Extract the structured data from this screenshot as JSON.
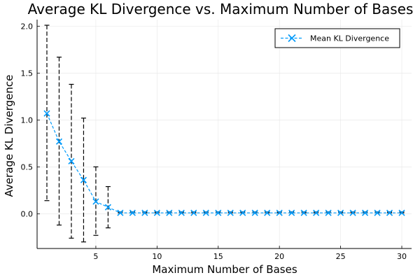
{
  "chart_data": {
    "type": "line",
    "title": "Average KL Divergence vs. Maximum Number of Bases",
    "xlabel": "Maximum Number of Bases",
    "ylabel": "Average KL Divergence",
    "xlim": [
      0.2,
      30.8
    ],
    "ylim": [
      -0.37,
      2.07
    ],
    "xticks": [
      5,
      10,
      15,
      20,
      25,
      30
    ],
    "yticks": [
      0.0,
      0.5,
      1.0,
      1.5,
      2.0
    ],
    "xtick_labels": [
      "5",
      "10",
      "15",
      "20",
      "25",
      "30"
    ],
    "ytick_labels": [
      "0.0",
      "0.5",
      "1.0",
      "1.5",
      "2.0"
    ],
    "grid": true,
    "legend_position": "top-right",
    "colors": {
      "series": "#009AFA",
      "error_bars": "#000000",
      "grid": "#E6E6E6"
    },
    "series": [
      {
        "name": "Mean KL Divergence",
        "marker": "x",
        "x": [
          1,
          2,
          3,
          4,
          5,
          6,
          7,
          8,
          9,
          10,
          11,
          12,
          13,
          14,
          15,
          16,
          17,
          18,
          19,
          20,
          21,
          22,
          23,
          24,
          25,
          26,
          27,
          28,
          29,
          30
        ],
        "values": [
          1.07,
          0.77,
          0.56,
          0.36,
          0.13,
          0.07,
          0.01,
          0.01,
          0.01,
          0.01,
          0.01,
          0.01,
          0.01,
          0.01,
          0.01,
          0.01,
          0.01,
          0.01,
          0.01,
          0.01,
          0.01,
          0.01,
          0.01,
          0.01,
          0.01,
          0.01,
          0.01,
          0.01,
          0.01,
          0.01
        ],
        "error_low": [
          0.14,
          -0.12,
          -0.26,
          -0.3,
          -0.23,
          -0.15,
          0.01,
          0.01,
          0.01,
          0.01,
          0.01,
          0.01,
          0.01,
          0.01,
          0.01,
          0.01,
          0.01,
          0.01,
          0.01,
          0.01,
          0.01,
          0.01,
          0.01,
          0.01,
          0.01,
          0.01,
          0.01,
          0.01,
          0.01,
          0.01
        ],
        "error_high": [
          2.01,
          1.67,
          1.38,
          1.02,
          0.5,
          0.29,
          0.02,
          0.02,
          0.02,
          0.02,
          0.02,
          0.02,
          0.02,
          0.02,
          0.02,
          0.02,
          0.02,
          0.02,
          0.02,
          0.02,
          0.02,
          0.02,
          0.02,
          0.02,
          0.02,
          0.02,
          0.02,
          0.02,
          0.02,
          0.02
        ]
      }
    ]
  }
}
